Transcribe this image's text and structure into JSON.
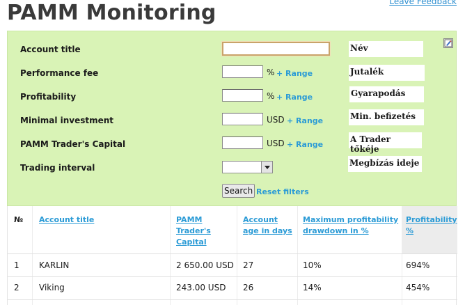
{
  "page": {
    "title": "PAMM Monitoring",
    "feedback_link": "Leave Feedback"
  },
  "filters": {
    "account_title": {
      "label": "Account title",
      "value": "",
      "translation": "Név"
    },
    "performance_fee": {
      "label": "Performance fee",
      "value": "",
      "unit": "%",
      "range": "+ Range",
      "translation": "Jutalék"
    },
    "profitability": {
      "label": "Profitability",
      "value": "",
      "unit": "%",
      "range": "+ Range",
      "translation": "Gyarapodás"
    },
    "minimal_investment": {
      "label": "Minimal investment",
      "value": "",
      "unit": "USD",
      "range": "+ Range",
      "translation": "Min. befizetés"
    },
    "trader_capital": {
      "label": "PAMM Trader's Capital",
      "value": "",
      "unit": "USD",
      "range": "+ Range",
      "translation": "A Trader tőkéje"
    },
    "trading_interval": {
      "label": "Trading interval",
      "selected": "",
      "translation": "Megbízás ideje"
    },
    "search_label": "Search",
    "reset_label": "Reset filters",
    "corner_icon": "edit-icon"
  },
  "table": {
    "headers": {
      "num": "№",
      "account_title": "Account title",
      "capital_l1": "PAMM",
      "capital_l2": "Trader's",
      "capital_l3": "Capital",
      "age_l1": "Account",
      "age_l2": "age in days",
      "drawdown_l1": "Maximum profitability",
      "drawdown_l2": "drawdown in %",
      "profit_l1": "Profitability",
      "profit_l2": "%"
    },
    "rows": [
      {
        "num": "1",
        "title": "KARLIN",
        "capital": "2 650.00 USD",
        "age": "27",
        "drawdown": "10%",
        "profitability": "694%"
      },
      {
        "num": "2",
        "title": "Viking",
        "capital": "243.00 USD",
        "age": "26",
        "drawdown": "14%",
        "profitability": "454%"
      }
    ]
  },
  "colors": {
    "filter_bg": "#d9f3b6",
    "link": "#2b9bd6",
    "title": "#3a3a3a"
  }
}
